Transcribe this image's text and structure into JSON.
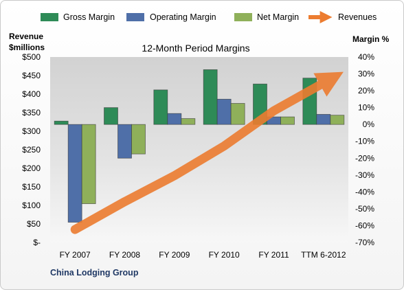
{
  "chart_data": {
    "type": "bar",
    "title": "12-Month Period Margins",
    "categories": [
      "FY 2007",
      "FY 2008",
      "FY 2009",
      "FY 2010",
      "FY 2011",
      "TTM 6-2012"
    ],
    "series": [
      {
        "name": "Gross Margin",
        "type": "bar",
        "axis": "right",
        "color": "#2e8b57",
        "values": [
          2.0,
          10.0,
          20.5,
          32.5,
          24.0,
          27.5
        ]
      },
      {
        "name": "Operating Margin",
        "type": "bar",
        "axis": "right",
        "color": "#4f6fa8",
        "values": [
          -58.0,
          -20.0,
          6.5,
          15.0,
          4.5,
          6.0
        ]
      },
      {
        "name": "Net Margin",
        "type": "bar",
        "axis": "right",
        "color": "#8fb05a",
        "values": [
          -47.0,
          -17.5,
          3.5,
          12.5,
          4.5,
          5.5
        ]
      },
      {
        "name": "Revenues",
        "type": "line",
        "axis": "left",
        "color": "#ec7c30",
        "values": [
          35,
          110,
          180,
          260,
          355,
          430
        ]
      }
    ],
    "y_left": {
      "label_line1": "Revenue",
      "label_line2": "$millions",
      "min": 0,
      "max": 500,
      "step": 50,
      "ticks": [
        "$-",
        "$50",
        "$100",
        "$150",
        "$200",
        "$250",
        "$300",
        "$350",
        "$400",
        "$450",
        "$500"
      ]
    },
    "y_right": {
      "label": "Margin %",
      "min": -70,
      "max": 40,
      "step": 10,
      "ticks": [
        "-70%",
        "-60%",
        "-50%",
        "-40%",
        "-30%",
        "-20%",
        "-10%",
        "0%",
        "10%",
        "20%",
        "30%",
        "40%"
      ]
    },
    "grid": false,
    "legend_position": "top"
  },
  "footer": {
    "company": "China Lodging Group"
  }
}
